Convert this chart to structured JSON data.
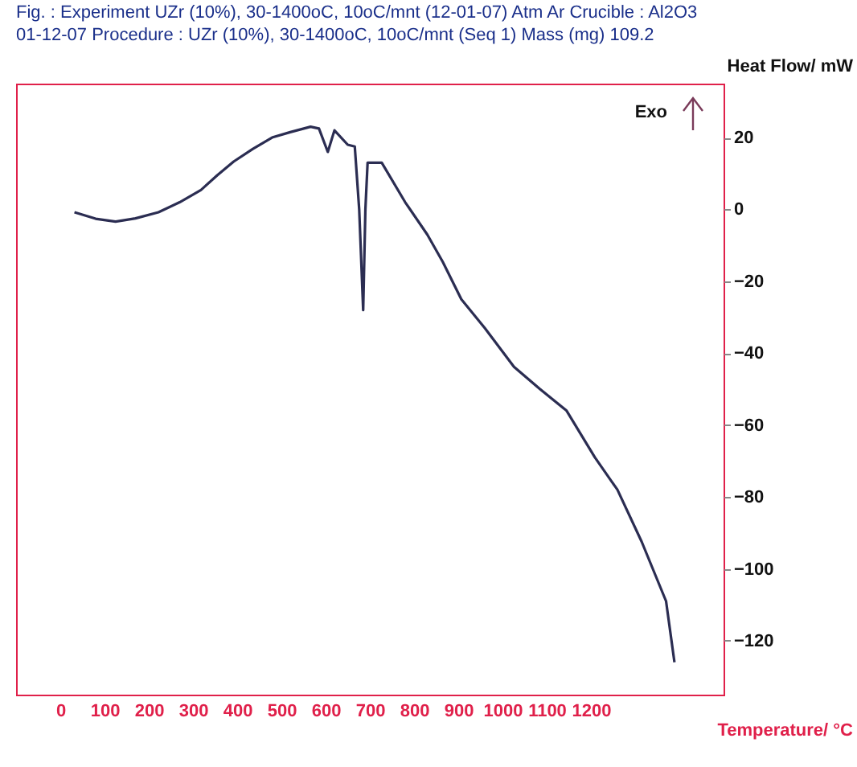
{
  "chart_data": {
    "type": "line",
    "title": "Fig. :   Experiment UZr (10%), 30-1400oC, 10oC/mnt (12-01-07)   Atm  Ar   Crucible : Al2O3",
    "subtitle": "01-12-07  Procedure : UZr (10%), 30-1400oC, 10oC/mnt (Seq 1)   Mass (mg) 109.2",
    "xlabel": "Temperature/ °C",
    "ylabel": "Heat Flow/ mW",
    "annotations": [
      "Exo"
    ],
    "x": [
      32,
      80,
      125,
      170,
      222,
      270,
      318,
      355,
      392,
      435,
      479,
      520,
      566,
      585,
      605,
      620,
      650,
      666,
      676,
      685,
      690,
      695,
      727,
      780,
      830,
      865,
      907,
      960,
      1026,
      1085,
      1145,
      1209,
      1260,
      1315,
      1370,
      1389
    ],
    "series": [
      {
        "color": "#2b2d52",
        "values": [
          -0.8,
          -2.6,
          -3.4,
          -2.5,
          -0.8,
          2.0,
          5.4,
          9.5,
          13.3,
          16.8,
          20,
          21.5,
          23,
          22.5,
          16,
          22,
          18,
          17.5,
          0,
          -28,
          0,
          13,
          13,
          2,
          -7,
          -14.6,
          -25,
          -33,
          -43.8,
          -50,
          -56,
          -69,
          -78,
          -92.5,
          -109,
          -126
        ]
      }
    ],
    "xlim": [
      -100,
      1500
    ],
    "ylim": [
      -135,
      35
    ],
    "xticks": [
      0,
      100,
      200,
      300,
      400,
      500,
      600,
      700,
      800,
      900,
      1000,
      1100,
      1200
    ],
    "yticks": [
      20,
      0,
      -20,
      -40,
      -60,
      -80,
      -100,
      -120
    ],
    "grid": false
  }
}
